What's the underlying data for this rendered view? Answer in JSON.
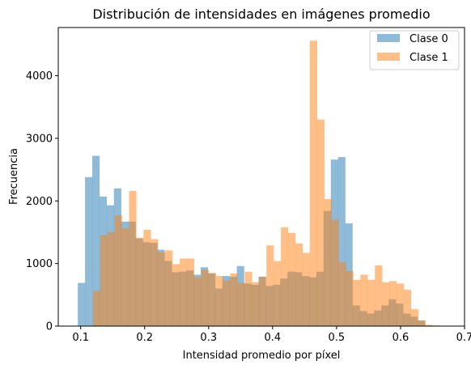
{
  "chart_data": {
    "type": "bar",
    "subtype": "overlapping-histogram",
    "title": "Distribución de intensidades en imágenes promedio",
    "xlabel": "Intensidad promedio por píxel",
    "ylabel": "Frecuencia",
    "xlim": [
      0.065,
      0.7
    ],
    "ylim": [
      0,
      4770
    ],
    "xticks": [
      0.1,
      0.2,
      0.3,
      0.4,
      0.5,
      0.6,
      0.7
    ],
    "xtick_labels": [
      "0.1",
      "0.2",
      "0.3",
      "0.4",
      "0.5",
      "0.6",
      "0.7"
    ],
    "yticks": [
      0,
      1000,
      2000,
      3000,
      4000
    ],
    "ytick_labels": [
      "0",
      "1000",
      "2000",
      "3000",
      "4000"
    ],
    "grid": false,
    "legend_position": "top-right",
    "alpha": 0.5,
    "series": [
      {
        "name": "Clase 0",
        "color": "#1f77b4",
        "bin_start": 0.0955,
        "bin_width": 0.0113,
        "values": [
          690,
          2380,
          2720,
          2070,
          1930,
          2200,
          1670,
          1670,
          1400,
          1340,
          1330,
          1220,
          1040,
          860,
          870,
          890,
          820,
          940,
          840,
          600,
          800,
          790,
          960,
          680,
          660,
          790,
          640,
          660,
          760,
          870,
          860,
          800,
          780,
          870,
          1840,
          2660,
          2700,
          1640,
          330,
          240,
          200,
          250,
          330,
          430,
          360,
          200,
          150,
          90,
          10
        ]
      },
      {
        "name": "Clase 1",
        "color": "#ff7f0e",
        "bin_start": 0.1192,
        "bin_width": 0.0113,
        "values": [
          560,
          1450,
          1500,
          1770,
          1560,
          2160,
          1410,
          1540,
          1390,
          1180,
          1210,
          990,
          1080,
          1080,
          780,
          900,
          850,
          800,
          730,
          840,
          690,
          870,
          700,
          790,
          1290,
          1040,
          1580,
          1490,
          1320,
          1170,
          4560,
          3300,
          2030,
          1700,
          1020,
          880,
          740,
          820,
          740,
          970,
          700,
          720,
          680,
          580,
          270,
          90,
          20,
          10,
          0
        ]
      }
    ]
  }
}
